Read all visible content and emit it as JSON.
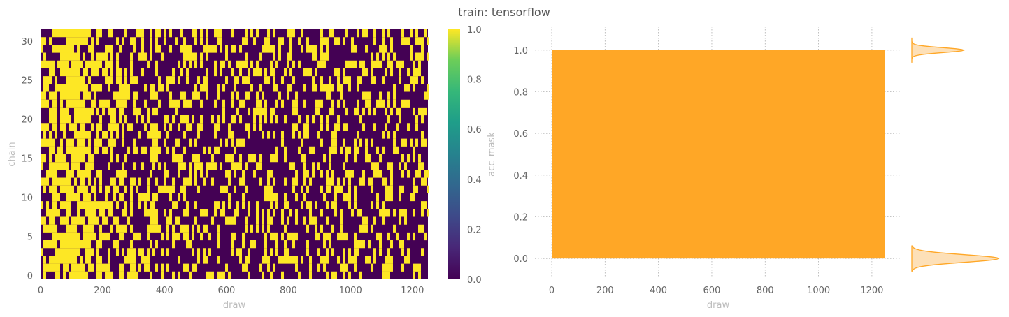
{
  "title": "train: tensorflow",
  "colors": {
    "viridis_low": "#440154",
    "viridis_high": "#fde725",
    "trace": "#ffa726",
    "density_fill": "#fde0b8",
    "density_line": "#ffa726",
    "grid": "#b0b0b0",
    "tick_text": "#666666",
    "axis_label": "#bbbbbb"
  },
  "chart_data": [
    {
      "type": "heatmap",
      "xlabel": "draw",
      "ylabel": "chain",
      "xlim": [
        0,
        1250
      ],
      "ylim": [
        0,
        32
      ],
      "xticks": [
        0,
        200,
        400,
        600,
        800,
        1000,
        1200
      ],
      "yticks": [
        0,
        5,
        10,
        15,
        20,
        25,
        30
      ],
      "n_chains": 32,
      "n_draws": 1250,
      "values_description_binary": [
        0,
        1
      ],
      "acceptance_rate_profile": [
        {
          "draw": 0,
          "p": 0.45
        },
        {
          "draw": 60,
          "p": 0.75
        },
        {
          "draw": 120,
          "p": 0.85
        },
        {
          "draw": 200,
          "p": 0.5
        },
        {
          "draw": 400,
          "p": 0.35
        },
        {
          "draw": 1250,
          "p": 0.3
        }
      ],
      "colorbar": {
        "label": "acc_mask",
        "range": [
          0.0,
          1.0
        ],
        "ticks": [
          "0.0",
          "0.2",
          "0.4",
          "0.6",
          "0.8",
          "1.0"
        ]
      }
    },
    {
      "type": "line",
      "xlabel": "draw",
      "xlim": [
        0,
        1250
      ],
      "ylim": [
        -0.1,
        1.1
      ],
      "xticks": [
        "0",
        "200",
        "400",
        "600",
        "800",
        "1000",
        "1200"
      ],
      "yticks": [
        "0.0",
        "0.2",
        "0.4",
        "0.6",
        "0.8",
        "1.0"
      ],
      "grid": true,
      "series_value_range": [
        0.0,
        1.0
      ],
      "marginal_density": {
        "peaks": [
          {
            "value": 0.0,
            "relative_height": 1.0
          },
          {
            "value": 1.0,
            "relative_height": 0.6
          }
        ]
      }
    }
  ]
}
